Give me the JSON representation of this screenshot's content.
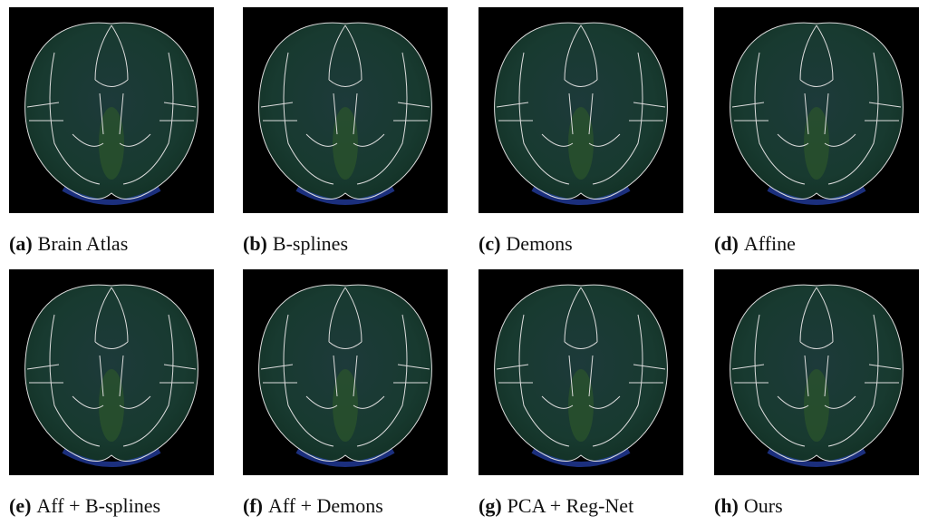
{
  "panels": [
    {
      "label": "(a)",
      "caption": "Brain Atlas"
    },
    {
      "label": "(b)",
      "caption": "B-splines"
    },
    {
      "label": "(c)",
      "caption": "Demons"
    },
    {
      "label": "(d)",
      "caption": "Affine"
    },
    {
      "label": "(e)",
      "caption": "Aff + B-splines"
    },
    {
      "label": "(f)",
      "caption": "Aff + Demons"
    },
    {
      "label": "(g)",
      "caption": "PCA + Reg-Net"
    },
    {
      "label": "(h)",
      "caption": "Ours"
    }
  ]
}
